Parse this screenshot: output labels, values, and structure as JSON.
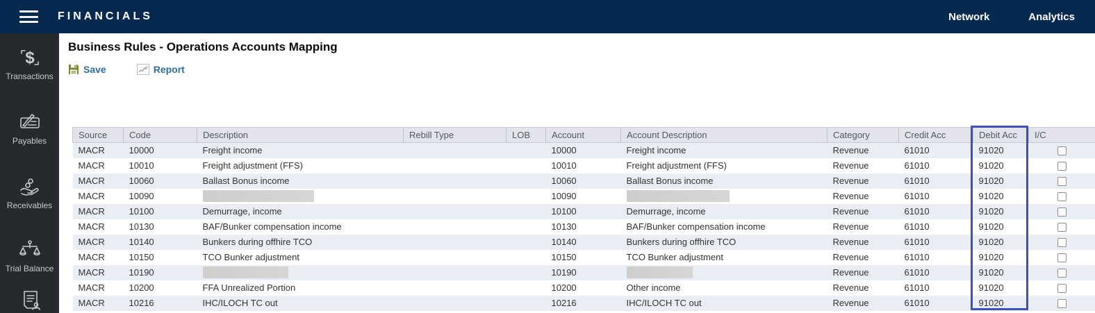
{
  "colors": {
    "topbar_bg": "#062950",
    "sidebar_bg": "#26292d",
    "link_blue": "#2e6e9e",
    "highlight_border": "#3d50b6",
    "row_stripe": "#e9eef4",
    "header_bg": "#e3e4eb",
    "save_icon_olive": "#83842f"
  },
  "topbar": {
    "menu_icon": "hamburger-icon",
    "title": "FINANCIALS",
    "nav": [
      {
        "label": "Network"
      },
      {
        "label": "Analytics"
      }
    ]
  },
  "sidebar": {
    "items": [
      {
        "label": "Transactions",
        "icon": "dollar-transfer-icon"
      },
      {
        "label": "Payables",
        "icon": "cheque-pen-icon"
      },
      {
        "label": "Receivables",
        "icon": "hand-coins-icon"
      },
      {
        "label": "Trial Balance",
        "icon": "balance-scales-icon"
      },
      {
        "label": "",
        "icon": "document-person-icon"
      }
    ]
  },
  "main": {
    "title": "Business Rules - Operations Accounts Mapping",
    "toolbar": {
      "save_label": "Save",
      "save_icon": "floppy-disk-icon",
      "report_label": "Report",
      "report_icon": "line-chart-icon"
    },
    "table": {
      "columns": [
        "Source",
        "Code",
        "Description",
        "Rebill Type",
        "LOB",
        "Account",
        "Account Description",
        "Category",
        "Credit Acc",
        "Debit Acc",
        "I/C"
      ],
      "highlighted_column": "Debit Acc",
      "rows": [
        {
          "source": "MACR",
          "code": "10000",
          "description": "Freight income",
          "rebill_type": "",
          "lob": "",
          "account": "10000",
          "account_description": "Freight income",
          "category": "Revenue",
          "credit_acc": "61010",
          "debit_acc": "91020",
          "ic_checked": false
        },
        {
          "source": "MACR",
          "code": "10010",
          "description": "Freight adjustment (FFS)",
          "rebill_type": "",
          "lob": "",
          "account": "10010",
          "account_description": "Freight adjustment (FFS)",
          "category": "Revenue",
          "credit_acc": "61010",
          "debit_acc": "91020",
          "ic_checked": false
        },
        {
          "source": "MACR",
          "code": "10060",
          "description": "Ballast Bonus income",
          "rebill_type": "",
          "lob": "",
          "account": "10060",
          "account_description": "Ballast Bonus income",
          "category": "Revenue",
          "credit_acc": "61010",
          "debit_acc": "91020",
          "ic_checked": false
        },
        {
          "source": "MACR",
          "code": "10090",
          "description": "",
          "rebill_type": "",
          "lob": "",
          "account": "10090",
          "account_description": "",
          "category": "Revenue",
          "credit_acc": "61010",
          "debit_acc": "91020",
          "ic_checked": false,
          "redactions": {
            "description": 160,
            "account_description": 148
          }
        },
        {
          "source": "MACR",
          "code": "10100",
          "description": "Demurrage, income",
          "rebill_type": "",
          "lob": "",
          "account": "10100",
          "account_description": "Demurrage, income",
          "category": "Revenue",
          "credit_acc": "61010",
          "debit_acc": "91020",
          "ic_checked": false
        },
        {
          "source": "MACR",
          "code": "10130",
          "description": "BAF/Bunker compensation income",
          "rebill_type": "",
          "lob": "",
          "account": "10130",
          "account_description": "BAF/Bunker compensation income",
          "category": "Revenue",
          "credit_acc": "61010",
          "debit_acc": "91020",
          "ic_checked": false
        },
        {
          "source": "MACR",
          "code": "10140",
          "description": "Bunkers during offhire TCO",
          "rebill_type": "",
          "lob": "",
          "account": "10140",
          "account_description": "Bunkers during offhire TCO",
          "category": "Revenue",
          "credit_acc": "61010",
          "debit_acc": "91020",
          "ic_checked": false
        },
        {
          "source": "MACR",
          "code": "10150",
          "description": "TCO Bunker adjustment",
          "rebill_type": "",
          "lob": "",
          "account": "10150",
          "account_description": "TCO Bunker adjustment",
          "category": "Revenue",
          "credit_acc": "61010",
          "debit_acc": "91020",
          "ic_checked": false
        },
        {
          "source": "MACR",
          "code": "10190",
          "description": "",
          "rebill_type": "",
          "lob": "",
          "account": "10190",
          "account_description": "",
          "category": "Revenue",
          "credit_acc": "61010",
          "debit_acc": "91020",
          "ic_checked": false,
          "redactions": {
            "description": 123,
            "account_description": 95
          }
        },
        {
          "source": "MACR",
          "code": "10200",
          "description": "FFA Unrealized Portion",
          "rebill_type": "",
          "lob": "",
          "account": "10200",
          "account_description": "Other income",
          "category": "Revenue",
          "credit_acc": "61010",
          "debit_acc": "91020",
          "ic_checked": false
        },
        {
          "source": "MACR",
          "code": "10216",
          "description": "IHC/ILOCH TC out",
          "rebill_type": "",
          "lob": "",
          "account": "10216",
          "account_description": "IHC/ILOCH TC out",
          "category": "Revenue",
          "credit_acc": "61010",
          "debit_acc": "91020",
          "ic_checked": false
        }
      ]
    }
  }
}
